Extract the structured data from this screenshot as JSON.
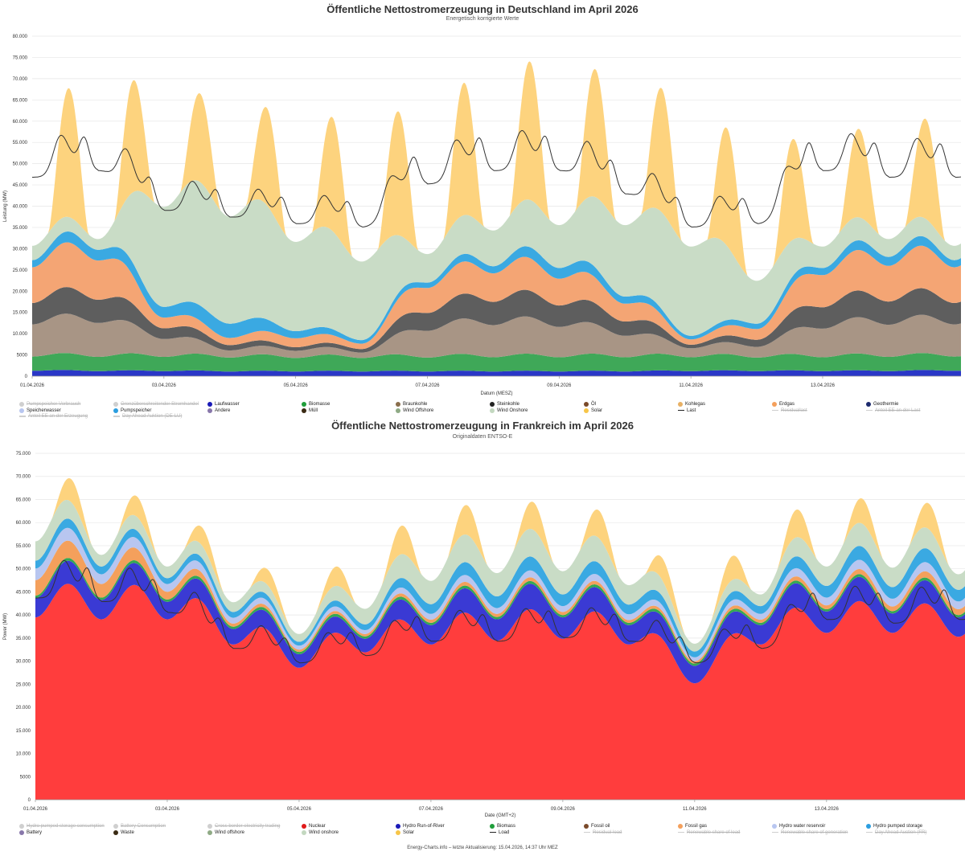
{
  "footer": "Energy-Charts.info – letzte Aktualisierung: 15.04.2026, 14:37 Uhr MEZ",
  "chart_data": [
    {
      "id": "de",
      "type": "area",
      "title": "Öffentliche Nettostromerzeugung in Deutschland im April 2026",
      "subtitle": "Energetisch korrigierte Werte",
      "xlabel": "Datum (MESZ)",
      "ylabel": "Leistung (MW)",
      "ylim": [
        0,
        80000
      ],
      "yticks": [
        0,
        5000,
        10000,
        15000,
        20000,
        25000,
        30000,
        35000,
        40000,
        45000,
        50000,
        55000,
        60000,
        65000,
        70000,
        75000,
        80000
      ],
      "ytick_labels": [
        "0",
        "5000",
        "10.000",
        "15.000",
        "20.000",
        "25.000",
        "30.000",
        "35.000",
        "40.000",
        "45.000",
        "50.000",
        "55.000",
        "60.000",
        "65.000",
        "70.000",
        "75.000",
        "80.000"
      ],
      "xlim_days": [
        1,
        15.1
      ],
      "xticks": [
        1,
        3,
        5,
        7,
        9,
        11,
        13
      ],
      "xtick_labels": [
        "01.04.2026",
        "03.04.2026",
        "05.04.2026",
        "07.04.2026",
        "09.04.2026",
        "11.04.2026",
        "13.04.2026"
      ],
      "grid": true,
      "legend_placement": "bottom",
      "series": [
        {
          "name": "Laufwasser",
          "color": "#2a37c7",
          "values": [
            1500,
            1400,
            1400,
            1300,
            1300,
            1300,
            1300,
            1300,
            1300,
            1300,
            1400,
            1400,
            1400,
            1400,
            1500
          ]
        },
        {
          "name": "Biomasse",
          "color": "#3fa858",
          "values": [
            4000,
            4000,
            4000,
            3900,
            3800,
            3800,
            3900,
            4000,
            4000,
            4000,
            3900,
            3800,
            3900,
            4000,
            4000
          ]
        },
        {
          "name": "Braunkohle",
          "color": "#a89585",
          "values": [
            9000,
            9500,
            5000,
            2000,
            2000,
            1500,
            7500,
            9000,
            8500,
            6000,
            2500,
            3000,
            8000,
            9000,
            9000
          ]
        },
        {
          "name": "Steinkohle",
          "color": "#5e5e5e",
          "values": [
            6000,
            6500,
            3000,
            1500,
            1000,
            1000,
            5000,
            6500,
            6000,
            4000,
            1000,
            2000,
            6000,
            6500,
            6000
          ]
        },
        {
          "name": "Erdgas",
          "color": "#f4a574",
          "values": [
            10000,
            11000,
            3000,
            2000,
            2500,
            1500,
            7000,
            8000,
            7500,
            5000,
            1500,
            3000,
            9000,
            10000,
            10000
          ]
        },
        {
          "name": "Pumpspeicher",
          "color": "#3aa9e2",
          "values": [
            2000,
            3000,
            3000,
            4000,
            2000,
            1000,
            1500,
            2000,
            3000,
            2000,
            1000,
            1500,
            2000,
            2500,
            2000
          ]
        },
        {
          "name": "Wind Onshore",
          "color": "#c9dcc6",
          "values": [
            4000,
            3000,
            28000,
            30000,
            25000,
            22000,
            8000,
            10000,
            12000,
            20000,
            25000,
            12000,
            6000,
            5000,
            4000
          ]
        },
        {
          "name": "Solar",
          "color": "#fdd37e",
          "values": [
            28000,
            32000,
            22000,
            20000,
            25000,
            28000,
            30000,
            32000,
            33000,
            28000,
            30000,
            26000,
            22000,
            20000,
            26000
          ]
        }
      ],
      "load": {
        "name": "Last",
        "color": "#333333",
        "values": [
          60000,
          62000,
          50000,
          48000,
          46000,
          45000,
          58000,
          62000,
          62000,
          55000,
          45000,
          46000,
          62000,
          60000,
          60000
        ]
      },
      "legend": [
        {
          "label": "Pumpspeicher Verbrauch",
          "color": "#bbbbbb",
          "shape": "dot",
          "enabled": false
        },
        {
          "label": "Grenzüberschreitender Stromhandel",
          "color": "#c8b8a8",
          "shape": "dot",
          "enabled": false
        },
        {
          "label": "Laufwasser",
          "color": "#1a1ab8",
          "shape": "dot",
          "enabled": true
        },
        {
          "label": "Biomasse",
          "color": "#1f9e3a",
          "shape": "dot",
          "enabled": true
        },
        {
          "label": "Braunkohle",
          "color": "#8a6e4c",
          "shape": "dot",
          "enabled": true
        },
        {
          "label": "Steinkohle",
          "color": "#222222",
          "shape": "dot",
          "enabled": true
        },
        {
          "label": "Öl",
          "color": "#7a4a2a",
          "shape": "dot",
          "enabled": true
        },
        {
          "label": "Kohlegas",
          "color": "#e8b064",
          "shape": "dot",
          "enabled": true
        },
        {
          "label": "Erdgas",
          "color": "#f4a05c",
          "shape": "dot",
          "enabled": true
        },
        {
          "label": "Geothermie",
          "color": "#1c2a6e",
          "shape": "dot",
          "enabled": true
        },
        {
          "label": "Speicherwasser",
          "color": "#b8c6f0",
          "shape": "dot",
          "enabled": true
        },
        {
          "label": "Pumpspeicher",
          "color": "#2b9ee0",
          "shape": "dot",
          "enabled": true
        },
        {
          "label": "Andere",
          "color": "#8877aa",
          "shape": "dot",
          "enabled": true
        },
        {
          "label": "Müll",
          "color": "#3a2a14",
          "shape": "dot",
          "enabled": true
        },
        {
          "label": "Wind Offshore",
          "color": "#8faa85",
          "shape": "dot",
          "enabled": true
        },
        {
          "label": "Wind Onshore",
          "color": "#c3d8c0",
          "shape": "dot",
          "enabled": true
        },
        {
          "label": "Solar",
          "color": "#f7c548",
          "shape": "dot",
          "enabled": true
        },
        {
          "label": "Last",
          "color": "#222222",
          "shape": "line",
          "enabled": true
        },
        {
          "label": "Residuallast",
          "color": "#e8c8a8",
          "shape": "line",
          "enabled": false
        },
        {
          "label": "Anteil EE an der Last",
          "color": "#aaaaaa",
          "shape": "line",
          "enabled": false
        },
        {
          "label": "Anteil EE an der Erzeugung",
          "color": "#aaaaaa",
          "shape": "line",
          "enabled": false
        },
        {
          "label": "Day Ahead Auktion (DE-LU)",
          "color": "#aaaaaa",
          "shape": "line",
          "enabled": false
        }
      ]
    },
    {
      "id": "fr",
      "type": "area",
      "title": "Öffentliche Nettostromerzeugung in Frankreich im April 2026",
      "subtitle": "Originaldaten ENTSO-E",
      "xlabel": "Date (GMT+2)",
      "ylabel": "Power (MW)",
      "ylim": [
        0,
        75000
      ],
      "yticks": [
        0,
        5000,
        10000,
        15000,
        20000,
        25000,
        30000,
        35000,
        40000,
        45000,
        50000,
        55000,
        60000,
        65000,
        70000,
        75000
      ],
      "ytick_labels": [
        "0",
        "5000",
        "10.000",
        "15.000",
        "20.000",
        "25.000",
        "30.000",
        "35.000",
        "40.000",
        "45.000",
        "50.000",
        "55.000",
        "60.000",
        "65.000",
        "70.000",
        "75.000"
      ],
      "xlim_days": [
        1,
        15.1
      ],
      "xticks": [
        1,
        3,
        5,
        7,
        9,
        11,
        13
      ],
      "xtick_labels": [
        "01.04.2026",
        "03.04.2026",
        "05.04.2026",
        "07.04.2026",
        "09.04.2026",
        "11.04.2026",
        "13.04.2026"
      ],
      "grid": true,
      "legend_placement": "bottom",
      "series": [
        {
          "name": "Nuclear",
          "color": "#ff3d3d",
          "values": [
            47000,
            46500,
            46500,
            40000,
            34000,
            38000,
            40000,
            41000,
            41500,
            40000,
            30000,
            40000,
            43000,
            43000,
            42000
          ]
        },
        {
          "name": "Hydro Run-of-River",
          "color": "#3a3ad4",
          "values": [
            5000,
            5000,
            4500,
            4000,
            3500,
            3500,
            5000,
            5500,
            5500,
            5000,
            4500,
            5000,
            5500,
            5000,
            5000
          ]
        },
        {
          "name": "Biomass",
          "color": "#34a853",
          "values": [
            600,
            600,
            600,
            600,
            600,
            600,
            600,
            600,
            600,
            600,
            600,
            600,
            600,
            600,
            600
          ]
        },
        {
          "name": "Fossil gas",
          "color": "#f4a05c",
          "values": [
            4000,
            3500,
            2000,
            800,
            600,
            600,
            800,
            800,
            800,
            700,
            600,
            800,
            1000,
            1200,
            1500
          ]
        },
        {
          "name": "Hydro water reservoir",
          "color": "#b8c6f0",
          "values": [
            3000,
            2500,
            2000,
            1500,
            1000,
            1000,
            1500,
            1500,
            1500,
            1500,
            1000,
            1500,
            2000,
            2000,
            2000
          ]
        },
        {
          "name": "Hydro pumped storage",
          "color": "#3aa9e2",
          "values": [
            2000,
            2000,
            1500,
            1500,
            1000,
            1500,
            2500,
            3000,
            3000,
            2500,
            1500,
            2000,
            3000,
            3000,
            3000
          ]
        },
        {
          "name": "Wind onshore",
          "color": "#c9dcc6",
          "values": [
            5000,
            3000,
            3000,
            2500,
            2000,
            4000,
            6000,
            6000,
            6000,
            5000,
            2000,
            3000,
            5000,
            5000,
            4000
          ]
        },
        {
          "name": "Solar",
          "color": "#fdd37e",
          "values": [
            5000,
            5000,
            4000,
            4000,
            3000,
            5000,
            7000,
            6000,
            6000,
            6000,
            4000,
            6000,
            6000,
            5000,
            6000
          ]
        }
      ],
      "load": {
        "name": "Load",
        "color": "#333333",
        "values": [
          56000,
          55000,
          52000,
          42000,
          38000,
          40000,
          44000,
          44000,
          45000,
          44000,
          38000,
          42000,
          50000,
          49000,
          50000
        ]
      },
      "legend": [
        {
          "label": "Hydro pumped storage consumption",
          "color": "#bbbbbb",
          "shape": "dot",
          "enabled": false
        },
        {
          "label": "Battery Consumption",
          "color": "#e8b0a0",
          "shape": "dot",
          "enabled": false
        },
        {
          "label": "Cross border electricity trading",
          "color": "#c8c8c8",
          "shape": "dot",
          "enabled": false
        },
        {
          "label": "Nuclear",
          "color": "#e01a1a",
          "shape": "dot",
          "enabled": true
        },
        {
          "label": "Hydro Run-of-River",
          "color": "#1a1ab8",
          "shape": "dot",
          "enabled": true
        },
        {
          "label": "Biomass",
          "color": "#1f9e3a",
          "shape": "dot",
          "enabled": true
        },
        {
          "label": "Fossil oil",
          "color": "#7a4a2a",
          "shape": "dot",
          "enabled": true
        },
        {
          "label": "Fossil gas",
          "color": "#f4a05c",
          "shape": "dot",
          "enabled": true
        },
        {
          "label": "Hydro water reservoir",
          "color": "#b8c6f0",
          "shape": "dot",
          "enabled": true
        },
        {
          "label": "Hydro pumped storage",
          "color": "#2b9ee0",
          "shape": "dot",
          "enabled": true
        },
        {
          "label": "Battery",
          "color": "#8877aa",
          "shape": "dot",
          "enabled": true
        },
        {
          "label": "Waste",
          "color": "#3a2a14",
          "shape": "dot",
          "enabled": true
        },
        {
          "label": "Wind offshore",
          "color": "#8faa85",
          "shape": "dot",
          "enabled": true
        },
        {
          "label": "Wind onshore",
          "color": "#c3d8c0",
          "shape": "dot",
          "enabled": true
        },
        {
          "label": "Solar",
          "color": "#f7c548",
          "shape": "dot",
          "enabled": true
        },
        {
          "label": "Load",
          "color": "#222222",
          "shape": "line",
          "enabled": true
        },
        {
          "label": "Residual load",
          "color": "#e8c8a8",
          "shape": "line",
          "enabled": false
        },
        {
          "label": "Renewable share of load",
          "color": "#aaaaaa",
          "shape": "line",
          "enabled": false
        },
        {
          "label": "Renewable share of generation",
          "color": "#e8d0a0",
          "shape": "line",
          "enabled": false
        },
        {
          "label": "Day Ahead Auction (FR)",
          "color": "#aaaaaa",
          "shape": "line",
          "enabled": false
        }
      ]
    }
  ]
}
